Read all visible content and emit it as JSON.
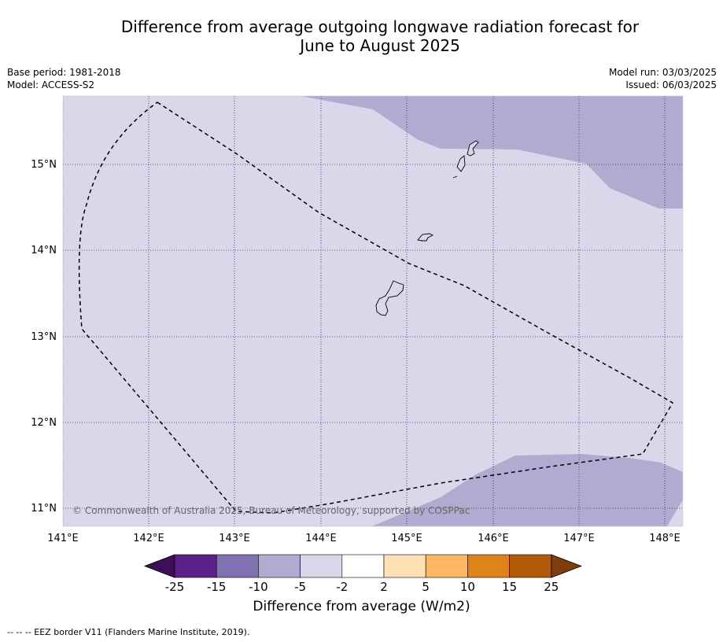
{
  "header": {
    "title_line1": "Difference from average outgoing longwave radiation forecast for",
    "title_line2": "June to August 2025",
    "base_period": "Base period: 1981-2018",
    "model": "Model: ACCESS-S2",
    "model_run": "Model run: 03/03/2025",
    "issued": "Issued: 06/03/2025"
  },
  "map": {
    "lon_range": [
      141,
      148.2
    ],
    "lat_range": [
      10.8,
      15.8
    ],
    "lat_labels": [
      "15°N",
      "14°N",
      "13°N",
      "12°N",
      "11°N"
    ],
    "lon_labels": [
      "141°E",
      "142°E",
      "143°E",
      "144°E",
      "145°E",
      "146°E",
      "147°E",
      "148°E"
    ],
    "background_category": "-5 to -2",
    "anomaly_regions": [
      {
        "name": "northeast",
        "category": "-10 to -5"
      },
      {
        "name": "southeast",
        "category": "-10 to -5"
      }
    ],
    "copyright": "© Commonwealth of Australia 2025, Bureau of Meteorology, supported by COSPPac",
    "colors": {
      "background": "#d8d8ea",
      "anomaly": "#b1abd1",
      "grid": "#333355",
      "eez": "#000000"
    }
  },
  "colorbar": {
    "title": "Difference from average (W/m2)",
    "ticks": [
      "-25",
      "-15",
      "-10",
      "-5",
      "-2",
      "2",
      "5",
      "10",
      "15",
      "25"
    ],
    "colors": [
      "#3e0f55",
      "#5a2288",
      "#8071b0",
      "#b1abd1",
      "#d8d8ea",
      "#ffffff",
      "#fde0b4",
      "#fbb763",
      "#e0821a",
      "#b25a08",
      "#7f3d0b"
    ]
  },
  "footer": {
    "legend": "--  --  -- EEZ border V11 (Flanders Marine Institute, 2019)."
  }
}
